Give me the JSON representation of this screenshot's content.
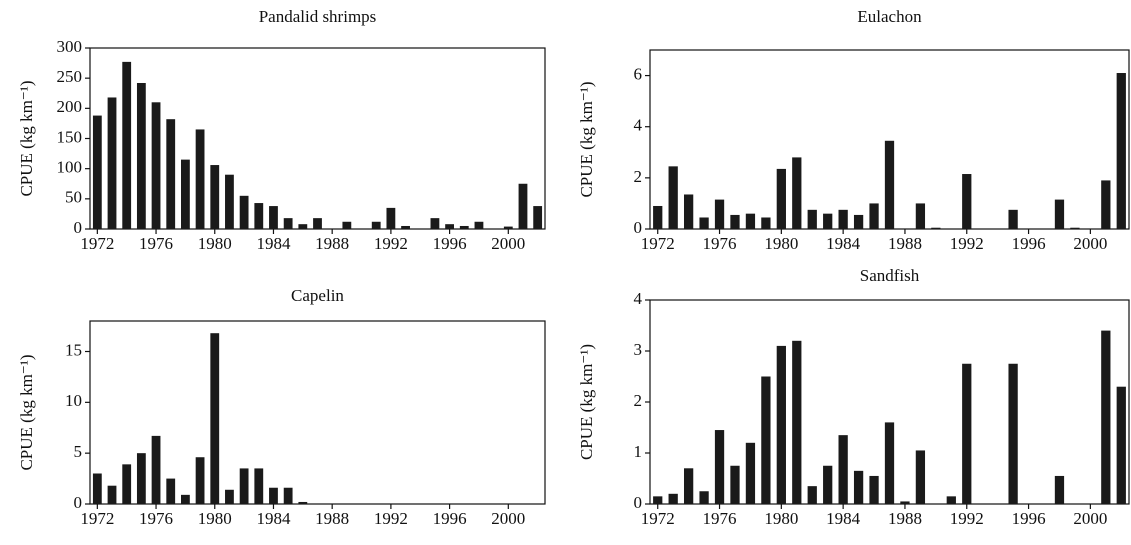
{
  "chart_data": [
    {
      "type": "bar",
      "title": "Pandalid shrimps",
      "ylabel": "CPUE (kg km⁻¹)",
      "color": "#1a1a1a",
      "x": [
        1972,
        1973,
        1974,
        1975,
        1976,
        1977,
        1978,
        1979,
        1980,
        1981,
        1982,
        1983,
        1984,
        1985,
        1986,
        1987,
        1988,
        1989,
        1990,
        1991,
        1992,
        1993,
        1994,
        1995,
        1996,
        1997,
        1998,
        1999,
        2000,
        2001,
        2002
      ],
      "values": [
        188,
        218,
        277,
        242,
        210,
        182,
        115,
        165,
        106,
        90,
        55,
        43,
        38,
        18,
        8,
        18,
        0,
        12,
        0,
        12,
        35,
        5,
        0,
        18,
        8,
        5,
        12,
        0,
        4,
        75,
        38
      ],
      "xlim": [
        1971.5,
        2002.5
      ],
      "xticks": [
        1972,
        1976,
        1980,
        1984,
        1988,
        1992,
        1996,
        2000
      ],
      "ylim": [
        0,
        300
      ],
      "yticks": [
        0,
        50,
        100,
        150,
        200,
        250,
        300
      ]
    },
    {
      "type": "bar",
      "title": "Eulachon",
      "ylabel": "CPUE (kg km⁻¹)",
      "color": "#1a1a1a",
      "x": [
        1972,
        1973,
        1974,
        1975,
        1976,
        1977,
        1978,
        1979,
        1980,
        1981,
        1982,
        1983,
        1984,
        1985,
        1986,
        1987,
        1988,
        1989,
        1990,
        1991,
        1992,
        1993,
        1994,
        1995,
        1996,
        1997,
        1998,
        1999,
        2000,
        2001,
        2002
      ],
      "values": [
        0.9,
        2.45,
        1.35,
        0.45,
        1.15,
        0.55,
        0.6,
        0.45,
        2.35,
        2.8,
        0.75,
        0.6,
        0.75,
        0.55,
        1.0,
        3.45,
        0,
        1.0,
        0.05,
        0,
        2.15,
        0,
        0,
        0.75,
        0,
        0,
        1.15,
        0.05,
        0,
        1.9,
        6.1
      ],
      "xlim": [
        1971.5,
        2002.5
      ],
      "xticks": [
        1972,
        1976,
        1980,
        1984,
        1988,
        1992,
        1996,
        2000
      ],
      "ylim": [
        0,
        7
      ],
      "yticks": [
        0,
        2,
        4,
        6
      ]
    },
    {
      "type": "bar",
      "title": "Capelin",
      "ylabel": "CPUE (kg km⁻¹)",
      "color": "#1a1a1a",
      "x": [
        1972,
        1973,
        1974,
        1975,
        1976,
        1977,
        1978,
        1979,
        1980,
        1981,
        1982,
        1983,
        1984,
        1985,
        1986,
        1987,
        1988,
        1989,
        1990,
        1991,
        1992,
        1993,
        1994,
        1995,
        1996,
        1997,
        1998,
        1999,
        2000,
        2001,
        2002
      ],
      "values": [
        3.0,
        1.8,
        3.9,
        5.0,
        6.7,
        2.5,
        0.9,
        4.6,
        16.8,
        1.4,
        3.5,
        3.5,
        1.6,
        1.6,
        0.2,
        0,
        0,
        0,
        0,
        0,
        0,
        0,
        0,
        0,
        0,
        0,
        0,
        0,
        0,
        0,
        0
      ],
      "xlim": [
        1971.5,
        2002.5
      ],
      "xticks": [
        1972,
        1976,
        1980,
        1984,
        1988,
        1992,
        1996,
        2000
      ],
      "ylim": [
        0,
        18
      ],
      "yticks": [
        0,
        5,
        10,
        15
      ]
    },
    {
      "type": "bar",
      "title": "Sandfish",
      "ylabel": "CPUE (kg km⁻¹)",
      "color": "#1a1a1a",
      "x": [
        1972,
        1973,
        1974,
        1975,
        1976,
        1977,
        1978,
        1979,
        1980,
        1981,
        1982,
        1983,
        1984,
        1985,
        1986,
        1987,
        1988,
        1989,
        1990,
        1991,
        1992,
        1993,
        1994,
        1995,
        1996,
        1997,
        1998,
        1999,
        2000,
        2001,
        2002
      ],
      "values": [
        0.15,
        0.2,
        0.7,
        0.25,
        1.45,
        0.75,
        1.2,
        2.5,
        3.1,
        3.2,
        0.35,
        0.75,
        1.35,
        0.65,
        0.55,
        1.6,
        0.05,
        1.05,
        0,
        0.15,
        2.75,
        0,
        0,
        2.75,
        0,
        0,
        0.55,
        0,
        0,
        3.4,
        2.3
      ],
      "xlim": [
        1971.5,
        2002.5
      ],
      "xticks": [
        1972,
        1976,
        1980,
        1984,
        1988,
        1992,
        1996,
        2000
      ],
      "ylim": [
        0,
        4
      ],
      "yticks": [
        0,
        1,
        2,
        3,
        4
      ]
    }
  ]
}
